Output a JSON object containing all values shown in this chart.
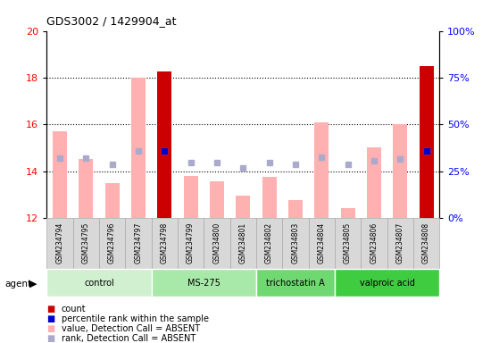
{
  "title": "GDS3002 / 1429904_at",
  "samples": [
    "GSM234794",
    "GSM234795",
    "GSM234796",
    "GSM234797",
    "GSM234798",
    "GSM234799",
    "GSM234800",
    "GSM234801",
    "GSM234802",
    "GSM234803",
    "GSM234804",
    "GSM234805",
    "GSM234806",
    "GSM234807",
    "GSM234808"
  ],
  "values": [
    15.7,
    14.5,
    13.5,
    18.0,
    18.25,
    13.8,
    13.55,
    12.95,
    13.75,
    12.75,
    16.1,
    12.4,
    15.0,
    16.0,
    18.5
  ],
  "ranks": [
    14.55,
    14.55,
    14.3,
    14.85,
    14.85,
    14.35,
    14.35,
    14.15,
    14.35,
    14.3,
    14.6,
    14.3,
    14.45,
    14.5,
    14.85
  ],
  "is_red": [
    false,
    false,
    false,
    false,
    true,
    false,
    false,
    false,
    false,
    false,
    false,
    false,
    false,
    false,
    true
  ],
  "has_blue_dot": [
    false,
    false,
    false,
    false,
    true,
    false,
    false,
    false,
    false,
    false,
    false,
    false,
    false,
    false,
    true
  ],
  "groups": [
    {
      "label": "control",
      "start": 0,
      "end": 4,
      "color": "#d0f0d0"
    },
    {
      "label": "MS-275",
      "start": 4,
      "end": 8,
      "color": "#a8e8a8"
    },
    {
      "label": "trichostatin A",
      "start": 8,
      "end": 11,
      "color": "#70d870"
    },
    {
      "label": "valproic acid",
      "start": 11,
      "end": 15,
      "color": "#40cc40"
    }
  ],
  "ylim": [
    12,
    20
  ],
  "y2lim": [
    0,
    100
  ],
  "yticks": [
    12,
    14,
    16,
    18,
    20
  ],
  "y2ticks": [
    0,
    25,
    50,
    75,
    100
  ],
  "bar_color_red": "#cc0000",
  "bar_color_pink": "#ffb0b0",
  "dot_blue_dark": "#0000cc",
  "dot_blue_light": "#aaaacc",
  "grid_lines": [
    14,
    16,
    18
  ],
  "legend_labels": [
    "count",
    "percentile rank within the sample",
    "value, Detection Call = ABSENT",
    "rank, Detection Call = ABSENT"
  ]
}
